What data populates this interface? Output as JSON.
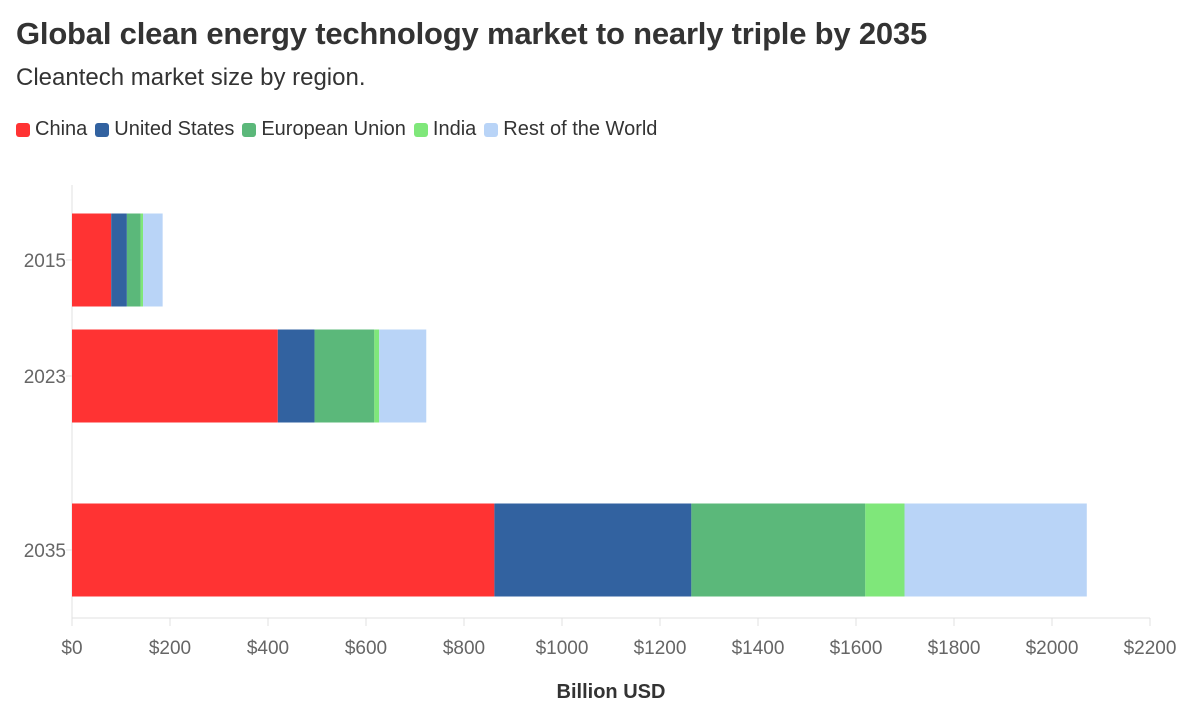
{
  "title": "Global clean energy technology market to nearly triple by 2035",
  "subtitle": "Cleantech market size by region.",
  "chart_data": {
    "type": "bar",
    "orientation": "horizontal",
    "stacked": true,
    "title": "Global clean energy technology market to nearly triple by 2035",
    "subtitle": "Cleantech market size by region.",
    "categories": [
      "2015",
      "2023",
      "2035"
    ],
    "series": [
      {
        "name": "China",
        "color": "#ff3333",
        "values": [
          80,
          420,
          862
        ]
      },
      {
        "name": "United States",
        "color": "#3262a0",
        "values": [
          32,
          75,
          402
        ]
      },
      {
        "name": "European Union",
        "color": "#5bb87a",
        "values": [
          28,
          122,
          355
        ]
      },
      {
        "name": "India",
        "color": "#7fe77a",
        "values": [
          5,
          10,
          80
        ]
      },
      {
        "name": "Rest of the World",
        "color": "#b9d4f7",
        "values": [
          40,
          96,
          372
        ]
      }
    ],
    "xlabel": "Billion USD",
    "ylabel": "",
    "xlim": [
      0,
      2200
    ],
    "xticks": [
      0,
      200,
      400,
      600,
      800,
      1000,
      1200,
      1400,
      1600,
      1800,
      2000,
      2200
    ],
    "xtick_labels": [
      "$0",
      "$200",
      "$400",
      "$600",
      "$800",
      "$1000",
      "$1200",
      "$1400",
      "$1600",
      "$1800",
      "$2000",
      "$2200"
    ],
    "grid": false,
    "legend_position": "top-left"
  }
}
